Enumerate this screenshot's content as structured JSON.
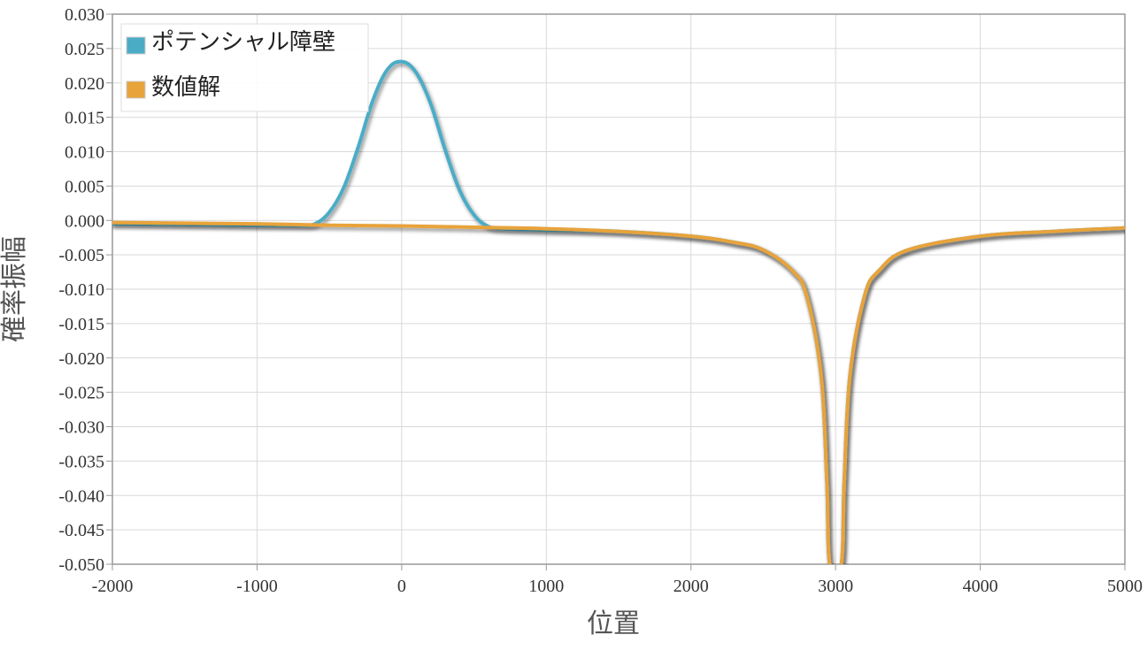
{
  "chart_data": {
    "type": "line",
    "title": "",
    "xlabel": "位置",
    "ylabel": "確率振幅",
    "xlim": [
      -2000,
      5000
    ],
    "ylim": [
      -0.05,
      0.03
    ],
    "x_ticks": [
      "-2000",
      "-1000",
      "0",
      "1000",
      "2000",
      "3000",
      "4000",
      "5000"
    ],
    "y_ticks": [
      "0.030",
      "0.025",
      "0.020",
      "0.015",
      "0.010",
      "0.005",
      "0.000",
      "-0.005",
      "-0.010",
      "-0.015",
      "-0.020",
      "-0.025",
      "-0.030",
      "-0.035",
      "-0.040",
      "-0.045",
      "-0.050"
    ],
    "grid": true,
    "legend": {
      "placement": "top-left"
    },
    "series": [
      {
        "name": "ポテンシャル障壁",
        "color": "#4bacc6",
        "x": [
          -2000,
          -1500,
          -1000,
          -800,
          -700,
          -600,
          -500,
          -400,
          -300,
          -200,
          -100,
          0,
          100,
          200,
          300,
          400,
          500,
          600,
          700,
          800,
          1000,
          1500,
          2000,
          2300,
          2500,
          2700,
          2800,
          2900,
          2940,
          2960,
          3040,
          3060,
          3100,
          3200,
          3300,
          3500,
          4000,
          4500,
          5000
        ],
        "y": [
          -0.0005,
          -0.0006,
          -0.0007,
          -0.0007,
          -0.0007,
          -0.0005,
          0.0012,
          0.0048,
          0.0107,
          0.0174,
          0.0219,
          0.0231,
          0.0215,
          0.017,
          0.0103,
          0.0044,
          0.0008,
          -0.0009,
          -0.0012,
          -0.0013,
          -0.0014,
          -0.0016,
          -0.0023,
          -0.0032,
          -0.0043,
          -0.0073,
          -0.011,
          -0.0225,
          -0.038,
          -0.05,
          -0.05,
          -0.038,
          -0.0225,
          -0.011,
          -0.0073,
          -0.0043,
          -0.0023,
          -0.0016,
          -0.0011
        ]
      },
      {
        "name": "数値解",
        "color": "#e8a33a",
        "x": [
          -2000,
          -1500,
          -1000,
          -500,
          0,
          500,
          1000,
          1500,
          2000,
          2300,
          2500,
          2700,
          2800,
          2900,
          2940,
          2960,
          3040,
          3060,
          3100,
          3200,
          3300,
          3500,
          4000,
          4500,
          5000
        ],
        "y": [
          -0.0003,
          -0.0004,
          -0.0005,
          -0.0007,
          -0.0008,
          -0.001,
          -0.0012,
          -0.0016,
          -0.0023,
          -0.0032,
          -0.0043,
          -0.0073,
          -0.011,
          -0.0225,
          -0.038,
          -0.05,
          -0.05,
          -0.038,
          -0.0225,
          -0.011,
          -0.0073,
          -0.0043,
          -0.0023,
          -0.0016,
          -0.0011
        ]
      }
    ]
  }
}
